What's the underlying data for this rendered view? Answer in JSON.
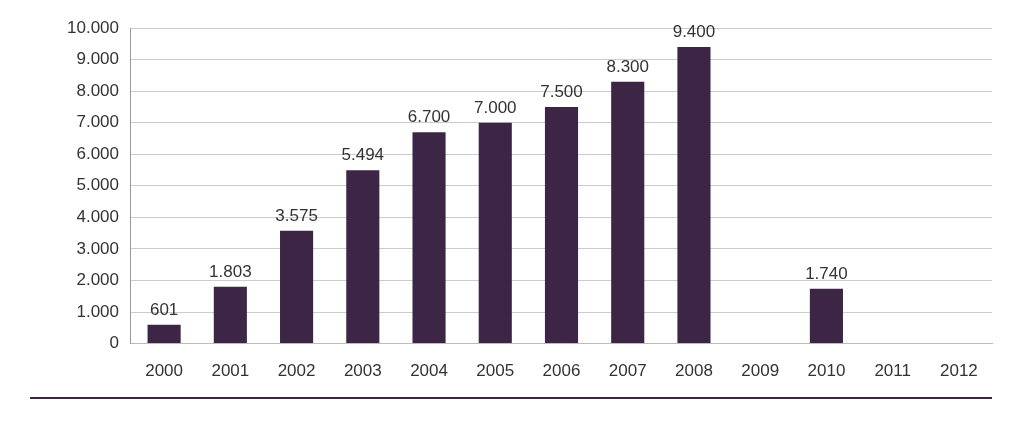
{
  "chart_data": {
    "type": "bar",
    "categories": [
      "2000",
      "2001",
      "2002",
      "2003",
      "2004",
      "2005",
      "2006",
      "2007",
      "2008",
      "2009",
      "2010",
      "2011",
      "2012"
    ],
    "values": [
      601,
      1803,
      3575,
      5494,
      6700,
      7000,
      7500,
      8300,
      9400,
      null,
      1740,
      null,
      null
    ],
    "value_labels": [
      "601",
      "1.803",
      "3.575",
      "5.494",
      "6.700",
      "7.000",
      "7.500",
      "8.300",
      "9.400",
      null,
      "1.740",
      null,
      null
    ],
    "color": "#3d2645",
    "ylim": [
      0,
      10000
    ],
    "yticks": [
      0,
      {
        "value": 1000,
        "label": "1.000"
      },
      {
        "value": 2000,
        "label": "2.000"
      },
      {
        "value": 3000,
        "label": "3.000"
      },
      {
        "value": 4000,
        "label": "4.000"
      },
      {
        "value": 5000,
        "label": "5.000"
      },
      {
        "value": 6000,
        "label": "6.000"
      },
      {
        "value": 7000,
        "label": "7.000"
      },
      {
        "value": 8000,
        "label": "8.000"
      },
      {
        "value": 9000,
        "label": "9.000"
      },
      {
        "value": 10000,
        "label": "10.000"
      }
    ],
    "grid": true,
    "data_labels": true
  }
}
